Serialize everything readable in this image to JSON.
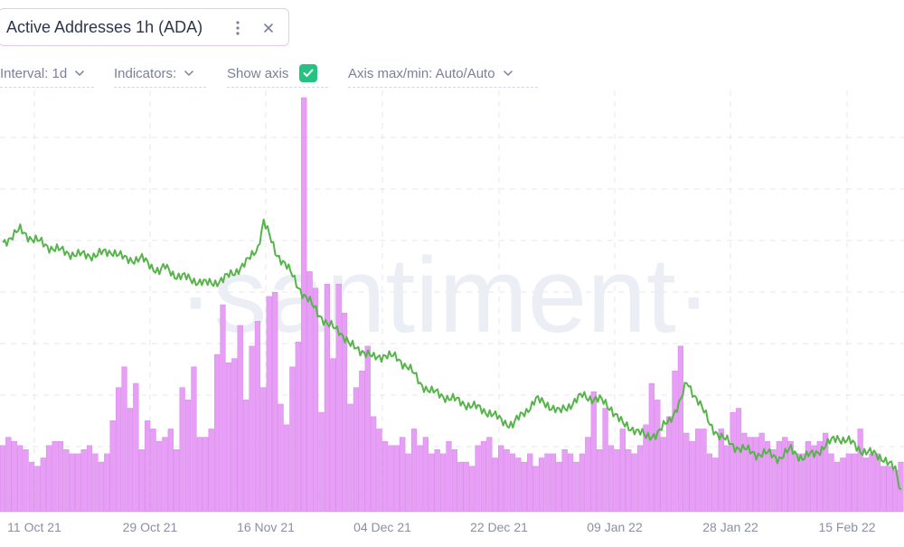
{
  "widget": {
    "title": "Active Addresses 1h (ADA)",
    "menu_icon": "vertical-dots-icon",
    "close_icon": "close-icon"
  },
  "toolbar": {
    "interval_label": "Interval: 1d",
    "indicators_label": "Indicators:",
    "show_axis_label": "Show axis",
    "show_axis_checked": true,
    "axis_label": "Axis max/min: Auto/Auto"
  },
  "watermark": "·santiment·",
  "colors": {
    "line": "#56b44a",
    "bars": "#e79ef5",
    "bar_stroke": "#d37de8",
    "grid": "#e4e6ef",
    "check": "#26c281",
    "border": "#e7c8f2"
  },
  "chart_data": {
    "type": "bar+line",
    "x_start": "2021-10-07",
    "x_end": "2022-02-27",
    "x_ticks": [
      "11 Oct 21",
      "29 Oct 21",
      "16 Nov 21",
      "04 Dec 21",
      "22 Dec 21",
      "09 Jan 22",
      "28 Jan 22",
      "15 Feb 22"
    ],
    "grid": true,
    "y_axis_shown": false,
    "series": [
      {
        "type": "bar",
        "y_range": [
          0,
          100
        ],
        "values": [
          16,
          18,
          17,
          16,
          15,
          12,
          11,
          13,
          16,
          17,
          17,
          15,
          14,
          14,
          15,
          16,
          14,
          12,
          14,
          22,
          30,
          35,
          25,
          31,
          15,
          22,
          20,
          17,
          18,
          20,
          15,
          30,
          27,
          35,
          18,
          18,
          20,
          38,
          50,
          36,
          37,
          45,
          27,
          40,
          46,
          30,
          52,
          53,
          26,
          21,
          35,
          41,
          100,
          58,
          54,
          24,
          55,
          37,
          55,
          48,
          26,
          30,
          34,
          40,
          23,
          20,
          17,
          16,
          16,
          18,
          14,
          20,
          16,
          18,
          14,
          15,
          14,
          17,
          15,
          12,
          12,
          11,
          16,
          17,
          18,
          13,
          16,
          15,
          14,
          13,
          12,
          14,
          11,
          13,
          14,
          14,
          12,
          15,
          14,
          12,
          14,
          18,
          29,
          15,
          25,
          16,
          15,
          20,
          15,
          14,
          16,
          21,
          31,
          27,
          18,
          23,
          34,
          40,
          19,
          17,
          20,
          20,
          14,
          13,
          20,
          16,
          24,
          25,
          19,
          18,
          18,
          19,
          17,
          15,
          17,
          18,
          17,
          14,
          14,
          17,
          16,
          17,
          19,
          14,
          12,
          13,
          14,
          14,
          20,
          13,
          14,
          14,
          11,
          11,
          10,
          12
        ],
        "notes": "relative bar heights (0–100) estimated from the image; no y-axis printed"
      },
      {
        "type": "line",
        "y_range": [
          0,
          100
        ],
        "anchors": [
          [
            0,
            65
          ],
          [
            3,
            68
          ],
          [
            5,
            66
          ],
          [
            8,
            64
          ],
          [
            10,
            63
          ],
          [
            13,
            62
          ],
          [
            16,
            62
          ],
          [
            19,
            63
          ],
          [
            21,
            61
          ],
          [
            24,
            61
          ],
          [
            27,
            58
          ],
          [
            28,
            59
          ],
          [
            30,
            57
          ],
          [
            33,
            56
          ],
          [
            35,
            55
          ],
          [
            38,
            56
          ],
          [
            40,
            58
          ],
          [
            42,
            60
          ],
          [
            44,
            64
          ],
          [
            45,
            70
          ],
          [
            47,
            63
          ],
          [
            50,
            57
          ],
          [
            52,
            52
          ],
          [
            54,
            49
          ],
          [
            56,
            45
          ],
          [
            58,
            44
          ],
          [
            60,
            40
          ],
          [
            62,
            39
          ],
          [
            64,
            37
          ],
          [
            66,
            38
          ],
          [
            68,
            37
          ],
          [
            70,
            35
          ],
          [
            72,
            31
          ],
          [
            74,
            29
          ],
          [
            76,
            28
          ],
          [
            78,
            27
          ],
          [
            80,
            26
          ],
          [
            82,
            25
          ],
          [
            84,
            24
          ],
          [
            86,
            22
          ],
          [
            88,
            21
          ],
          [
            90,
            24
          ],
          [
            92,
            27
          ],
          [
            94,
            26
          ],
          [
            96,
            24
          ],
          [
            98,
            26
          ],
          [
            100,
            28
          ],
          [
            103,
            27
          ],
          [
            105,
            25
          ],
          [
            107,
            21
          ],
          [
            109,
            20
          ],
          [
            111,
            18
          ],
          [
            113,
            19
          ],
          [
            115,
            22
          ],
          [
            117,
            27
          ],
          [
            118,
            31
          ],
          [
            120,
            27
          ],
          [
            122,
            21
          ],
          [
            124,
            18
          ],
          [
            126,
            16
          ],
          [
            128,
            15
          ],
          [
            130,
            14
          ],
          [
            132,
            14
          ],
          [
            134,
            13
          ],
          [
            136,
            15
          ],
          [
            138,
            13
          ],
          [
            140,
            14
          ],
          [
            142,
            16
          ],
          [
            144,
            18
          ],
          [
            146,
            17
          ],
          [
            148,
            15
          ],
          [
            150,
            14
          ],
          [
            152,
            13
          ],
          [
            154,
            10
          ],
          [
            155,
            5
          ]
        ],
        "notes": "relative line level (0–100) estimated from the image"
      }
    ]
  }
}
